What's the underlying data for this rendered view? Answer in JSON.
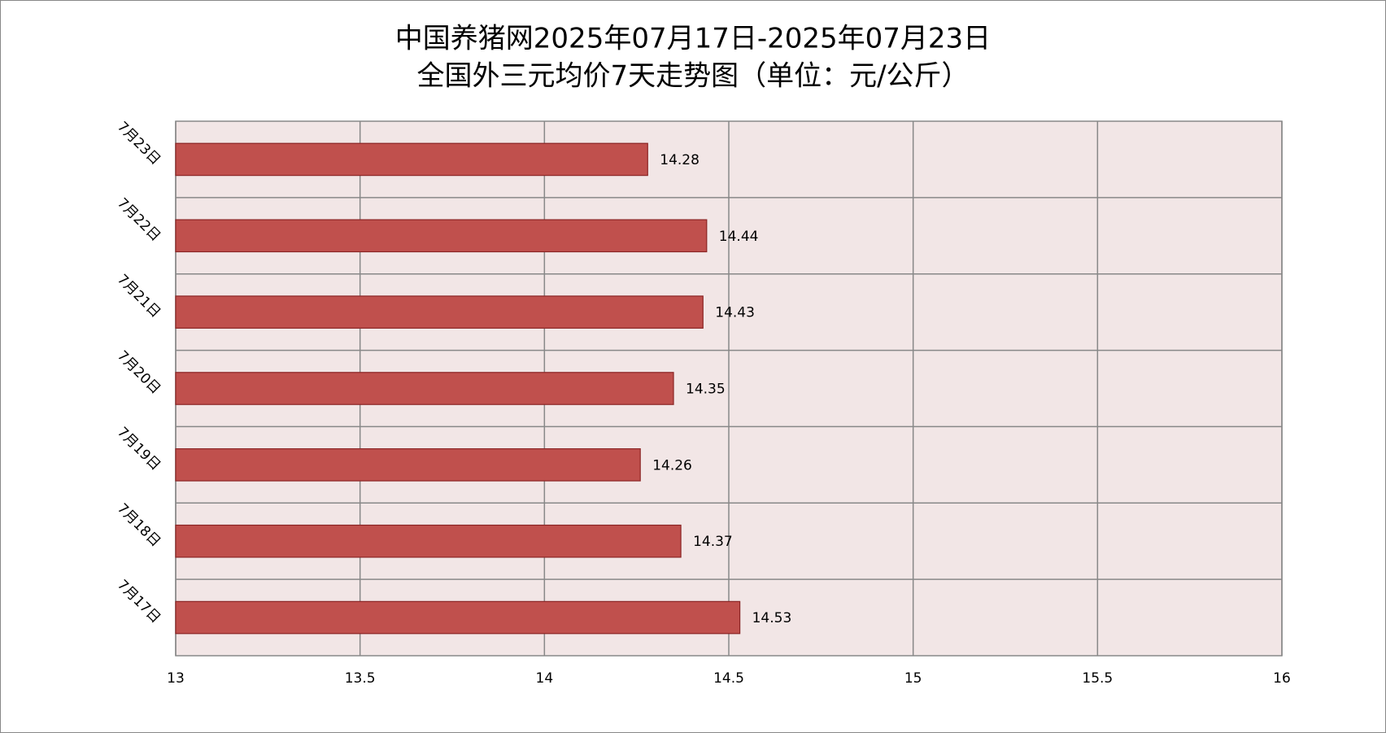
{
  "chart_data": {
    "type": "barh",
    "title": [
      "中国养猪网2025年07月17日-2025年07月23日",
      "全国外三元均价7天走势图（单位：元/公斤）"
    ],
    "categories": [
      "7月17日",
      "7月18日",
      "7月19日",
      "7月20日",
      "7月21日",
      "7月22日",
      "7月23日"
    ],
    "values": [
      14.53,
      14.37,
      14.26,
      14.35,
      14.43,
      14.44,
      14.28
    ],
    "color": "#c0504d",
    "xlim": [
      13,
      16
    ],
    "xticks": [
      13,
      13.5,
      14,
      14.5,
      15,
      15.5,
      16
    ],
    "grid": true
  }
}
